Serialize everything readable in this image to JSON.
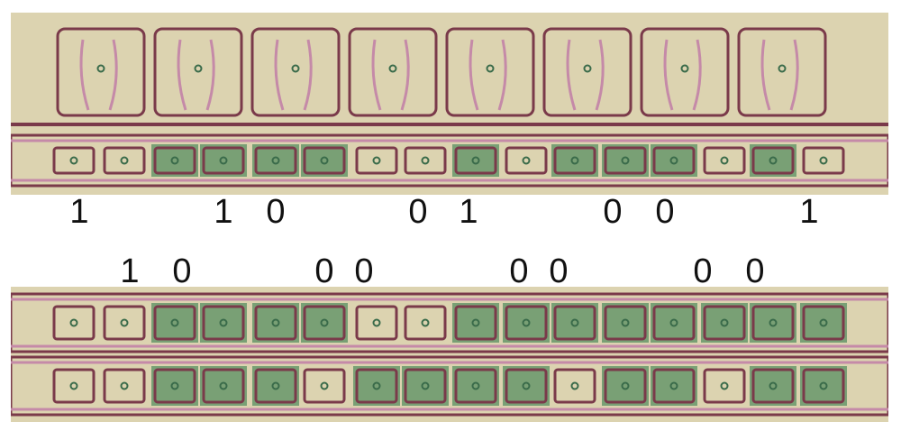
{
  "rows": [
    {
      "bits": [
        {
          "text": "1"
        },
        {
          "text": "1"
        },
        {
          "text": "0"
        },
        {
          "text": "0"
        },
        {
          "text": "1"
        },
        {
          "text": "0"
        },
        {
          "text": "0"
        },
        {
          "text": "1"
        }
      ]
    },
    {
      "bits": [
        {
          "text": "1"
        },
        {
          "text": "0"
        },
        {
          "text": "0"
        },
        {
          "text": "0"
        },
        {
          "text": "0"
        },
        {
          "text": "0"
        },
        {
          "text": "0"
        },
        {
          "text": "0"
        }
      ]
    }
  ],
  "colors": {
    "substrate": "#dcd3b0",
    "metal": "#7a3a4a",
    "poly": "#c58aa8",
    "diffusion": "#4f8a5c",
    "contact": "#3a6b4a"
  }
}
